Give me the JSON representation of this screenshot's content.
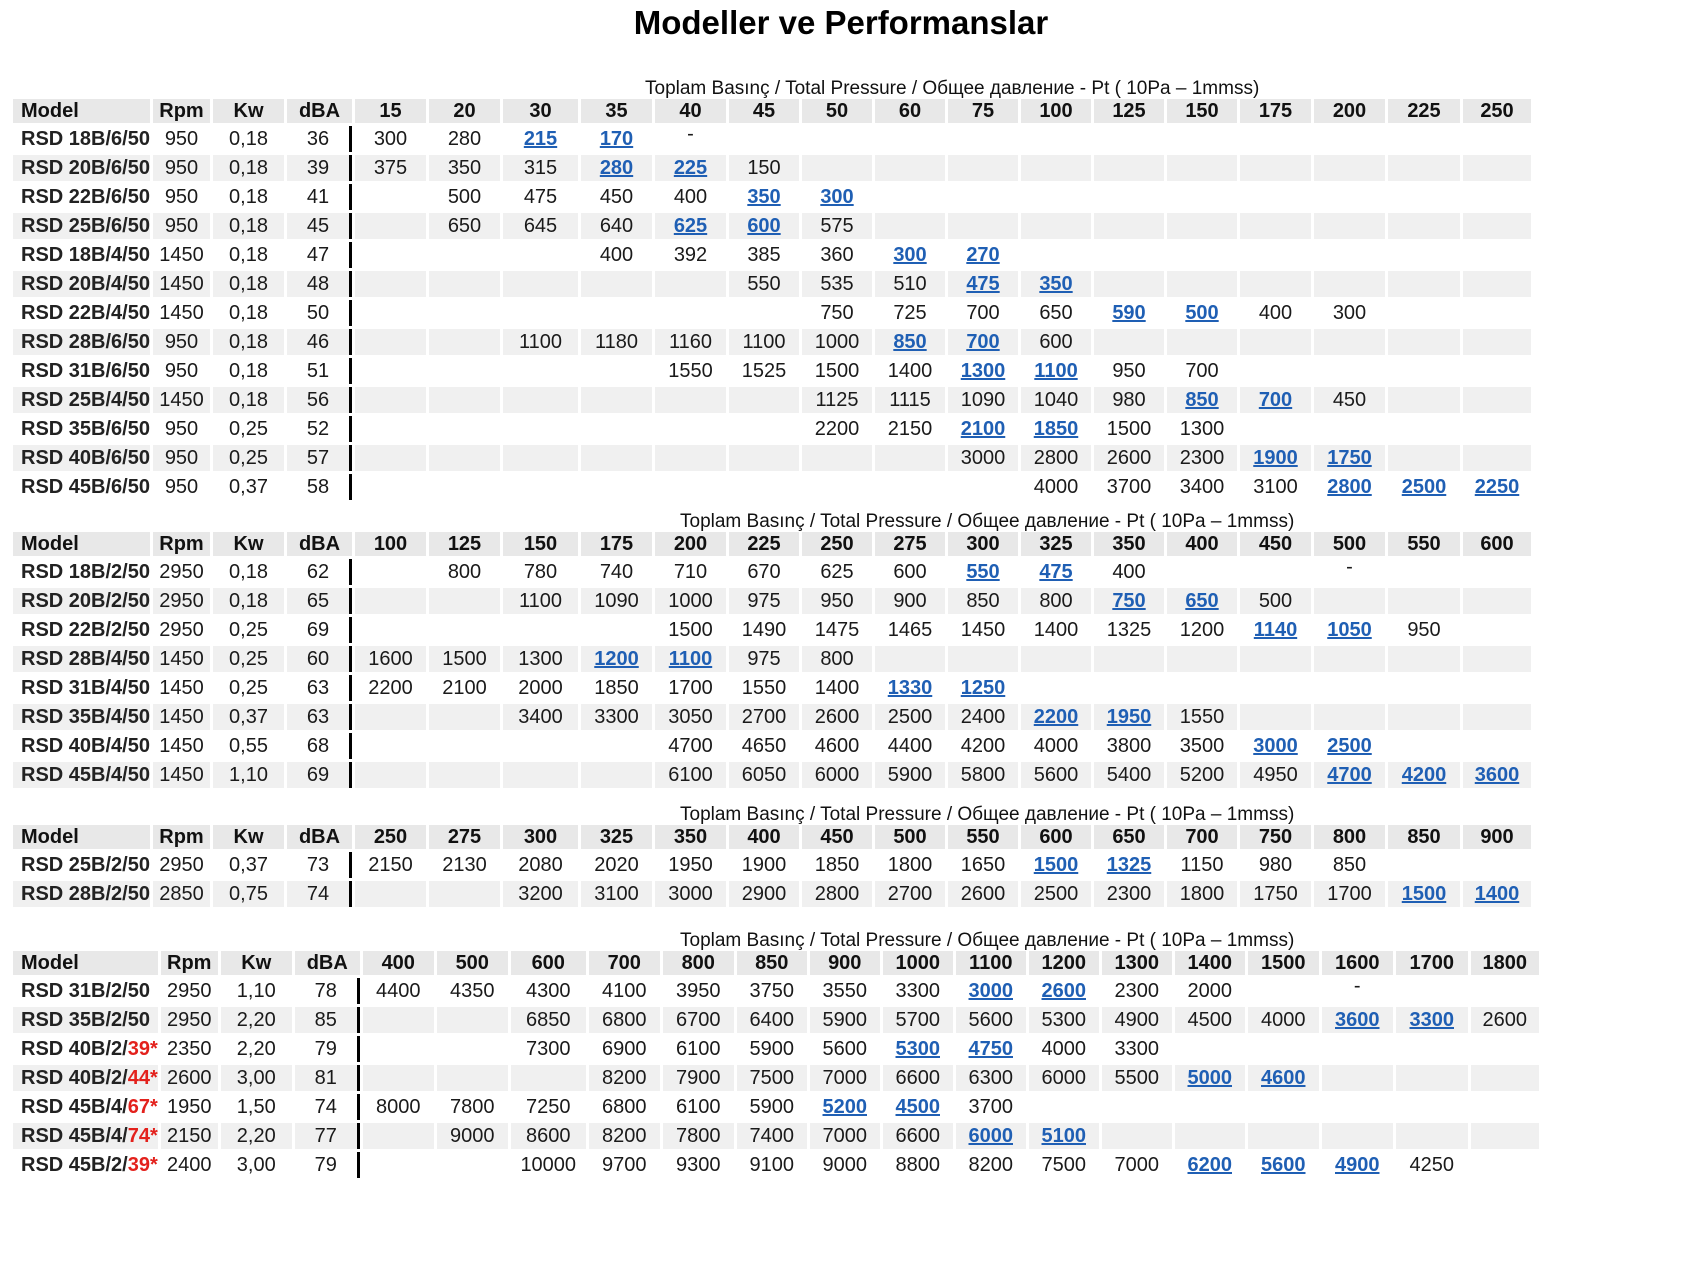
{
  "title": "Modeller ve Performanslar",
  "pressure_caption": "Toplam Basınç / Total Pressure / Общее давление  - Pt ( 10Pa – 1mmss)",
  "colors": {
    "link": "#1f5fb4",
    "red": "#e3211c",
    "shade": "#f0f0f0",
    "header": "#e8e8e8"
  },
  "tables": [
    {
      "columns": [
        "Model",
        "Rpm",
        "Kw",
        "dBA",
        "15",
        "20",
        "30",
        "35",
        "40",
        "45",
        "50",
        "60",
        "75",
        "100",
        "125",
        "150",
        "175",
        "200",
        "225",
        "250"
      ],
      "rows": [
        {
          "model": "RSD 18B/6/50",
          "vals": [
            "950",
            "0,18",
            "36",
            "300",
            "280",
            "L215",
            "L170",
            "-",
            "",
            "",
            "",
            "",
            "",
            "",
            "",
            "",
            "",
            "",
            ""
          ]
        },
        {
          "model": "RSD 20B/6/50",
          "vals": [
            "950",
            "0,18",
            "39",
            "375",
            "350",
            "315",
            "L280",
            "L225",
            "150",
            "",
            "",
            "",
            "",
            "",
            "",
            "",
            "",
            "",
            ""
          ]
        },
        {
          "model": "RSD 22B/6/50",
          "vals": [
            "950",
            "0,18",
            "41",
            "",
            "500",
            "475",
            "450",
            "400",
            "L350",
            "L300",
            "",
            "",
            "",
            "",
            "",
            "",
            "",
            "",
            ""
          ]
        },
        {
          "model": "RSD 25B/6/50",
          "vals": [
            "950",
            "0,18",
            "45",
            "",
            "650",
            "645",
            "640",
            "L625",
            "L600",
            "575",
            "",
            "",
            "",
            "",
            "",
            "",
            "",
            "",
            ""
          ]
        },
        {
          "model": "RSD 18B/4/50",
          "vals": [
            "1450",
            "0,18",
            "47",
            "",
            "",
            "",
            "400",
            "392",
            "385",
            "360",
            "L300",
            "L270",
            "",
            "",
            "",
            "",
            "",
            "",
            ""
          ]
        },
        {
          "model": "RSD 20B/4/50",
          "vals": [
            "1450",
            "0,18",
            "48",
            "",
            "",
            "",
            "",
            "",
            "550",
            "535",
            "510",
            "L475",
            "L350",
            "",
            "",
            "",
            "",
            "",
            ""
          ]
        },
        {
          "model": "RSD 22B/4/50",
          "vals": [
            "1450",
            "0,18",
            "50",
            "",
            "",
            "",
            "",
            "",
            "",
            "750",
            "725",
            "700",
            "650",
            "L590",
            "L500",
            "400",
            "300",
            "",
            ""
          ]
        },
        {
          "model": "RSD 28B/6/50",
          "vals": [
            "950",
            "0,18",
            "46",
            "",
            "",
            "1100",
            "1180",
            "1160",
            "1100",
            "1000",
            "L850",
            "L700",
            "600",
            "",
            "",
            "",
            "",
            "",
            ""
          ]
        },
        {
          "model": "RSD 31B/6/50",
          "vals": [
            "950",
            "0,18",
            "51",
            "",
            "",
            "",
            "",
            "1550",
            "1525",
            "1500",
            "1400",
            "L1300",
            "L1100",
            "950",
            "700",
            "",
            "",
            "",
            ""
          ]
        },
        {
          "model": "RSD 25B/4/50",
          "vals": [
            "1450",
            "0,18",
            "56",
            "",
            "",
            "",
            "",
            "",
            "",
            "1125",
            "1115",
            "1090",
            "1040",
            "980",
            "L850",
            "L700",
            "450",
            "",
            ""
          ]
        },
        {
          "model": "RSD 35B/6/50",
          "vals": [
            "950",
            "0,25",
            "52",
            "",
            "",
            "",
            "",
            "",
            "",
            "2200",
            "2150",
            "L2100",
            "L1850",
            "1500",
            "1300",
            "",
            "",
            "",
            ""
          ]
        },
        {
          "model": "RSD 40B/6/50",
          "vals": [
            "950",
            "0,25",
            "57",
            "",
            "",
            "",
            "",
            "",
            "",
            "",
            "",
            "3000",
            "2800",
            "2600",
            "2300",
            "L1900",
            "L1750",
            "",
            ""
          ]
        },
        {
          "model": "RSD 45B/6/50",
          "vals": [
            "950",
            "0,37",
            "58",
            "",
            "",
            "",
            "",
            "",
            "",
            "",
            "",
            "",
            "4000",
            "3700",
            "3400",
            "3100",
            "L2800",
            "L2500",
            "L2250"
          ]
        }
      ]
    },
    {
      "columns": [
        "Model",
        "Rpm",
        "Kw",
        "dBA",
        "100",
        "125",
        "150",
        "175",
        "200",
        "225",
        "250",
        "275",
        "300",
        "325",
        "350",
        "400",
        "450",
        "500",
        "550",
        "600"
      ],
      "rows": [
        {
          "model": "RSD 18B/2/50",
          "vals": [
            "2950",
            "0,18",
            "62",
            "",
            "800",
            "780",
            "740",
            "710",
            "670",
            "625",
            "600",
            "L550",
            "L475",
            "400",
            "",
            "",
            "-",
            "",
            ""
          ]
        },
        {
          "model": "RSD 20B/2/50",
          "vals": [
            "2950",
            "0,18",
            "65",
            "",
            "",
            "1100",
            "1090",
            "1000",
            "975",
            "950",
            "900",
            "850",
            "800",
            "L750",
            "L650",
            "500",
            "",
            "",
            ""
          ]
        },
        {
          "model": "RSD 22B/2/50",
          "vals": [
            "2950",
            "0,25",
            "69",
            "",
            "",
            "",
            "",
            "1500",
            "1490",
            "1475",
            "1465",
            "1450",
            "1400",
            "1325",
            "1200",
            "L1140",
            "L1050",
            "950",
            ""
          ]
        },
        {
          "model": "RSD 28B/4/50",
          "vals": [
            "1450",
            "0,25",
            "60",
            "1600",
            "1500",
            "1300",
            "L1200",
            "L1100",
            "975",
            "800",
            "",
            "",
            "",
            "",
            "",
            "",
            "",
            "",
            ""
          ]
        },
        {
          "model": "RSD 31B/4/50",
          "vals": [
            "1450",
            "0,25",
            "63",
            "2200",
            "2100",
            "2000",
            "1850",
            "1700",
            "1550",
            "1400",
            "L1330",
            "L1250",
            "",
            "",
            "",
            "",
            "",
            "",
            ""
          ]
        },
        {
          "model": "RSD 35B/4/50",
          "vals": [
            "1450",
            "0,37",
            "63",
            "",
            "",
            "3400",
            "3300",
            "3050",
            "2700",
            "2600",
            "2500",
            "2400",
            "L2200",
            "L1950",
            "1550",
            "",
            "",
            "",
            ""
          ]
        },
        {
          "model": "RSD 40B/4/50",
          "vals": [
            "1450",
            "0,55",
            "68",
            "",
            "",
            "",
            "",
            "4700",
            "4650",
            "4600",
            "4400",
            "4200",
            "4000",
            "3800",
            "3500",
            "L3000",
            "L2500",
            "",
            ""
          ]
        },
        {
          "model": "RSD 45B/4/50",
          "vals": [
            "1450",
            "1,10",
            "69",
            "",
            "",
            "",
            "",
            "6100",
            "6050",
            "6000",
            "5900",
            "5800",
            "5600",
            "5400",
            "5200",
            "4950",
            "L4700",
            "L4200",
            "L3600"
          ]
        }
      ]
    },
    {
      "columns": [
        "Model",
        "Rpm",
        "Kw",
        "dBA",
        "250",
        "275",
        "300",
        "325",
        "350",
        "400",
        "450",
        "500",
        "550",
        "600",
        "650",
        "700",
        "750",
        "800",
        "850",
        "900"
      ],
      "rows": [
        {
          "model": "RSD 25B/2/50",
          "vals": [
            "2950",
            "0,37",
            "73",
            "2150",
            "2130",
            "2080",
            "2020",
            "1950",
            "1900",
            "1850",
            "1800",
            "1650",
            "L1500",
            "L1325",
            "1150",
            "980",
            "850",
            "",
            ""
          ]
        },
        {
          "model": "RSD 28B/2/50",
          "vals": [
            "2850",
            "0,75",
            "74",
            "",
            "",
            "3200",
            "3100",
            "3000",
            "2900",
            "2800",
            "2700",
            "2600",
            "2500",
            "2300",
            "1800",
            "1750",
            "1700",
            "L1500",
            "L1400"
          ]
        }
      ]
    },
    {
      "columns": [
        "Model",
        "Rpm",
        "Kw",
        "dBA",
        "400",
        "500",
        "600",
        "700",
        "800",
        "850",
        "900",
        "1000",
        "1100",
        "1200",
        "1300",
        "1400",
        "1500",
        "1600",
        "1700",
        "1800"
      ],
      "rows": [
        {
          "model": "RSD 31B/2/50",
          "vals": [
            "2950",
            "1,10",
            "78",
            "4400",
            "4350",
            "4300",
            "4100",
            "3950",
            "3750",
            "3550",
            "3300",
            "L3000",
            "L2600",
            "2300",
            "2000",
            "",
            "-",
            "",
            ""
          ]
        },
        {
          "model": "RSD 35B/2/50",
          "vals": [
            "2950",
            "2,20",
            "85",
            "",
            "",
            "6850",
            "6800",
            "6700",
            "6400",
            "5900",
            "5700",
            "5600",
            "5300",
            "4900",
            "4500",
            "4000",
            "L3600",
            "L3300",
            "2600"
          ]
        },
        {
          "model": "RSD 40B/2/",
          "model_red": "39*",
          "vals": [
            "2350",
            "2,20",
            "79",
            "",
            "",
            "7300",
            "6900",
            "6100",
            "5900",
            "5600",
            "L5300",
            "L4750",
            "4000",
            "3300",
            "",
            "",
            "",
            "",
            ""
          ]
        },
        {
          "model": "RSD 40B/2/",
          "model_red": "44*",
          "vals": [
            "2600",
            "3,00",
            "81",
            "",
            "",
            "",
            "8200",
            "7900",
            "7500",
            "7000",
            "6600",
            "6300",
            "6000",
            "5500",
            "L5000",
            "L4600",
            "",
            "",
            ""
          ]
        },
        {
          "model": "RSD 45B/4/",
          "model_red": "67*",
          "vals": [
            "1950",
            "1,50",
            "74",
            "8000",
            "7800",
            "7250",
            "6800",
            "6100",
            "5900",
            "L5200",
            "L4500",
            "3700",
            "",
            "",
            "",
            "",
            "",
            "",
            ""
          ]
        },
        {
          "model": "RSD 45B/4/",
          "model_red": "74*",
          "vals": [
            "2150",
            "2,20",
            "77",
            "",
            "9000",
            "8600",
            "8200",
            "7800",
            "7400",
            "7000",
            "6600",
            "L6000",
            "L5100",
            "",
            "",
            "",
            "",
            "",
            ""
          ]
        },
        {
          "model": "RSD 45B/2/",
          "model_red": "39*",
          "vals": [
            "2400",
            "3,00",
            "79",
            "",
            "",
            "10000",
            "9700",
            "9300",
            "9100",
            "9000",
            "8800",
            "8200",
            "7500",
            "7000",
            "L6200",
            "L5600",
            "L4900",
            "4250",
            ""
          ]
        }
      ]
    }
  ]
}
